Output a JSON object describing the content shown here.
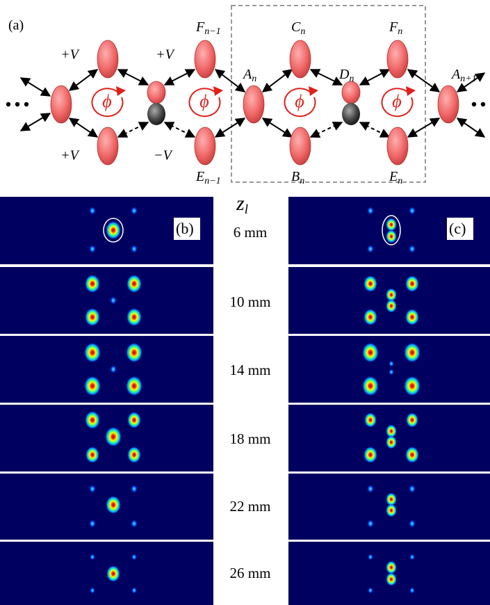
{
  "panel_a": {
    "label": "(a)",
    "couplings": [
      "+V",
      "+V",
      "+V",
      "−V"
    ],
    "sites": [
      {
        "base": "F",
        "sub": "n−1"
      },
      {
        "base": "C",
        "sub": "n"
      },
      {
        "base": "F",
        "sub": "n"
      },
      {
        "base": "A",
        "sub": "n"
      },
      {
        "base": "D",
        "sub": "n"
      },
      {
        "base": "A",
        "sub": "n+1"
      },
      {
        "base": "E",
        "sub": "n−1"
      },
      {
        "base": "B",
        "sub": "n"
      },
      {
        "base": "E",
        "sub": "n"
      }
    ],
    "flux": [
      "ϕ",
      "ϕ",
      "ϕ",
      "ϕ"
    ]
  },
  "panel_b": {
    "label": "(b)"
  },
  "panel_c": {
    "label": "(c)"
  },
  "axis_label": {
    "base": "z",
    "sub": "l"
  },
  "distances": [
    "6 mm",
    "10 mm",
    "14 mm",
    "18 mm",
    "22 mm",
    "26 mm"
  ]
}
